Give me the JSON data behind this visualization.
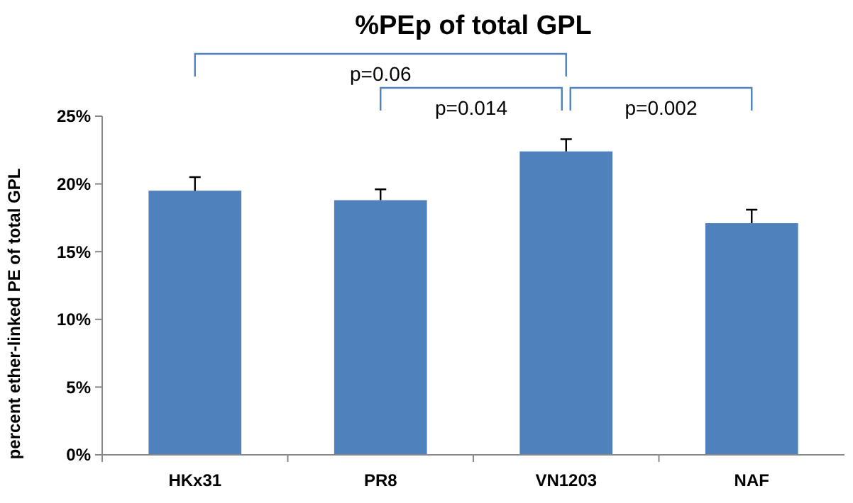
{
  "chart_data": {
    "type": "bar",
    "title": "%PEp of total GPL",
    "ylabel": "percent ether-linked PE of total GPL",
    "categories": [
      "HKx31",
      "PR8",
      "VN1203",
      "NAF"
    ],
    "values": [
      19.5,
      18.8,
      22.4,
      17.1
    ],
    "errors": [
      [
        19.5,
        20.5
      ],
      [
        18.8,
        19.6
      ],
      [
        22.4,
        23.3
      ],
      [
        17.1,
        18.1
      ]
    ],
    "color": "#4f81bd",
    "ylim": [
      0,
      25
    ],
    "yticks": [
      {
        "value": 0,
        "label": "0%"
      },
      {
        "value": 5,
        "label": "5%"
      },
      {
        "value": 10,
        "label": "10%"
      },
      {
        "value": 15,
        "label": "15%"
      },
      {
        "value": 20,
        "label": "20%"
      },
      {
        "value": 25,
        "label": "25%"
      }
    ],
    "annotations": [
      "p=0.06",
      "p=0.014",
      "p=0.002"
    ],
    "grid": false
  }
}
